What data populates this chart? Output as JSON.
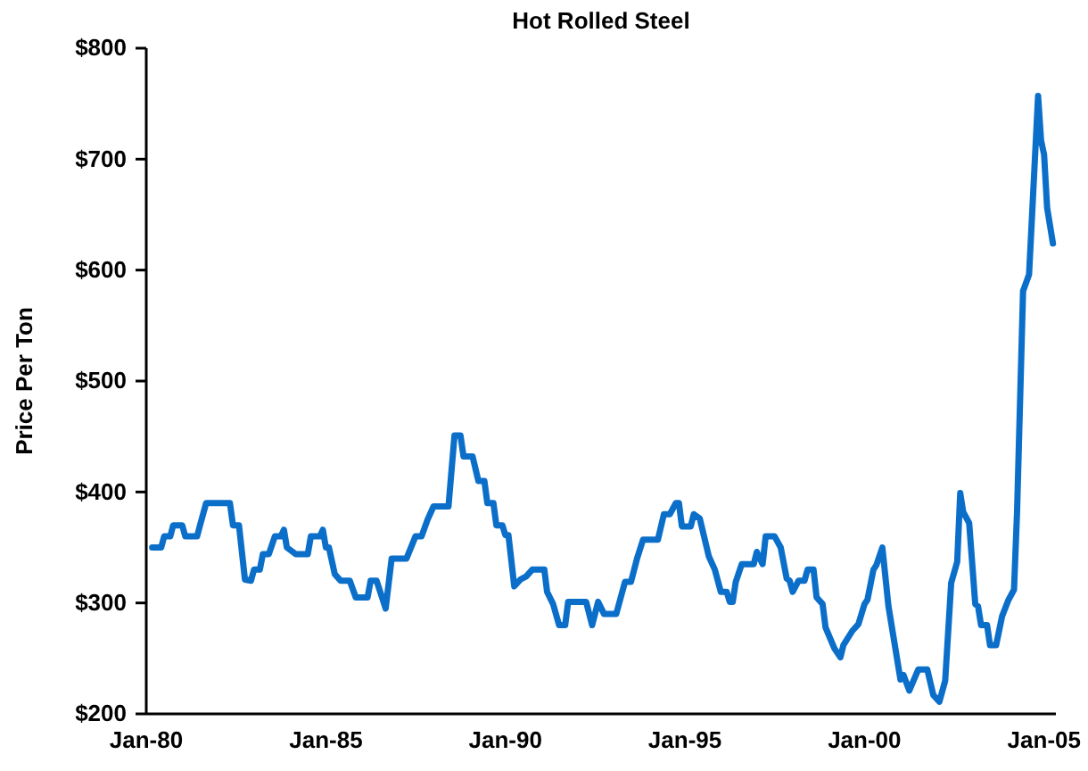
{
  "chart_data": {
    "type": "line",
    "title": "Hot Rolled Steel",
    "ylabel": "Price Per Ton",
    "xlim": [
      "1980-01",
      "2005-05"
    ],
    "ylim": [
      200,
      800
    ],
    "xticks": [
      {
        "value": "1980-01",
        "label": "Jan-80"
      },
      {
        "value": "1985-01",
        "label": "Jan-85"
      },
      {
        "value": "1990-01",
        "label": "Jan-90"
      },
      {
        "value": "1995-01",
        "label": "Jan-95"
      },
      {
        "value": "2000-01",
        "label": "Jan-00"
      },
      {
        "value": "2005-01",
        "label": "Jan-05"
      }
    ],
    "yticks": [
      {
        "value": 200,
        "label": "$200"
      },
      {
        "value": 300,
        "label": "$300"
      },
      {
        "value": 400,
        "label": "$400"
      },
      {
        "value": 500,
        "label": "$500"
      },
      {
        "value": 600,
        "label": "$600"
      },
      {
        "value": 700,
        "label": "$700"
      },
      {
        "value": 800,
        "label": "$800"
      }
    ],
    "grid": false,
    "marker": "none",
    "line_style": "solid",
    "series": [
      {
        "color": "#0b6fca",
        "x": [
          "1980-03",
          "1980-06",
          "1980-07",
          "1980-09",
          "1980-10",
          "1981-01",
          "1981-02",
          "1981-06",
          "1981-07",
          "1981-09",
          "1982-05",
          "1982-06",
          "1982-08",
          "1982-10",
          "1982-12",
          "1983-01",
          "1983-03",
          "1983-04",
          "1983-06",
          "1983-08",
          "1983-10",
          "1983-11",
          "1983-12",
          "1984-03",
          "1984-07",
          "1984-08",
          "1984-11",
          "1984-12",
          "1985-01",
          "1985-02",
          "1985-04",
          "1985-06",
          "1985-09",
          "1985-11",
          "1986-03",
          "1986-04",
          "1986-06",
          "1986-09",
          "1986-11",
          "1987-04",
          "1987-07",
          "1987-09",
          "1987-11",
          "1988-01",
          "1988-06",
          "1988-08",
          "1988-10",
          "1988-11",
          "1989-02",
          "1989-04",
          "1989-06",
          "1989-07",
          "1989-09",
          "1989-10",
          "1989-12",
          "1990-01",
          "1990-02",
          "1990-04",
          "1990-06",
          "1990-08",
          "1990-10",
          "1991-02",
          "1991-03",
          "1991-05",
          "1991-07",
          "1991-09",
          "1991-10",
          "1992-04",
          "1992-06",
          "1992-08",
          "1992-10",
          "1993-02",
          "1993-05",
          "1993-07",
          "1993-09",
          "1993-11",
          "1994-04",
          "1994-06",
          "1994-08",
          "1994-10",
          "1994-11",
          "1994-12",
          "1995-03",
          "1995-04",
          "1995-06",
          "1995-09",
          "1995-11",
          "1996-01",
          "1996-03",
          "1996-04",
          "1996-05",
          "1996-06",
          "1996-08",
          "1996-12",
          "1997-01",
          "1997-03",
          "1997-04",
          "1997-07",
          "1997-09",
          "1997-11",
          "1997-12",
          "1998-01",
          "1998-03",
          "1998-05",
          "1998-06",
          "1998-08",
          "1998-09",
          "1998-11",
          "1998-12",
          "1999-03",
          "1999-05",
          "1999-06",
          "1999-09",
          "1999-11",
          "2000-01",
          "2000-02",
          "2000-04",
          "2000-05",
          "2000-07",
          "2000-09",
          "2000-11",
          "2001-01",
          "2001-02",
          "2001-04",
          "2001-07",
          "2001-10",
          "2001-12",
          "2002-02",
          "2002-04",
          "2002-06",
          "2002-08",
          "2002-09",
          "2002-10",
          "2002-12",
          "2003-02",
          "2003-03",
          "2003-04",
          "2003-06",
          "2003-07",
          "2003-09",
          "2003-11",
          "2004-01",
          "2004-03",
          "2004-04",
          "2004-06",
          "2004-08",
          "2004-09",
          "2004-11",
          "2004-12",
          "2005-01",
          "2005-02",
          "2005-04"
        ],
        "values": [
          350,
          350,
          360,
          360,
          370,
          370,
          360,
          360,
          370,
          390,
          390,
          370,
          370,
          321,
          320,
          330,
          330,
          344,
          344,
          360,
          360,
          366,
          350,
          344,
          344,
          360,
          360,
          366,
          350,
          350,
          326,
          320,
          320,
          305,
          305,
          320,
          320,
          295,
          340,
          340,
          360,
          360,
          375,
          387,
          387,
          451,
          451,
          432,
          432,
          410,
          410,
          390,
          390,
          370,
          370,
          361,
          361,
          315,
          321,
          324,
          330,
          330,
          310,
          299,
          280,
          280,
          301,
          301,
          280,
          301,
          290,
          290,
          319,
          319,
          340,
          357,
          357,
          380,
          380,
          390,
          390,
          369,
          369,
          380,
          376,
          342,
          330,
          310,
          310,
          301,
          301,
          319,
          335,
          335,
          346,
          335,
          360,
          360,
          350,
          322,
          320,
          310,
          320,
          320,
          330,
          330,
          305,
          299,
          278,
          259,
          251,
          262,
          275,
          281,
          299,
          303,
          330,
          334,
          350,
          297,
          264,
          231,
          235,
          221,
          240,
          240,
          217,
          211,
          230,
          318,
          337,
          399,
          382,
          372,
          299,
          297,
          280,
          280,
          262,
          262,
          288,
          302,
          312,
          382,
          581,
          596,
          650,
          757,
          717,
          704,
          656,
          624
        ]
      }
    ]
  }
}
